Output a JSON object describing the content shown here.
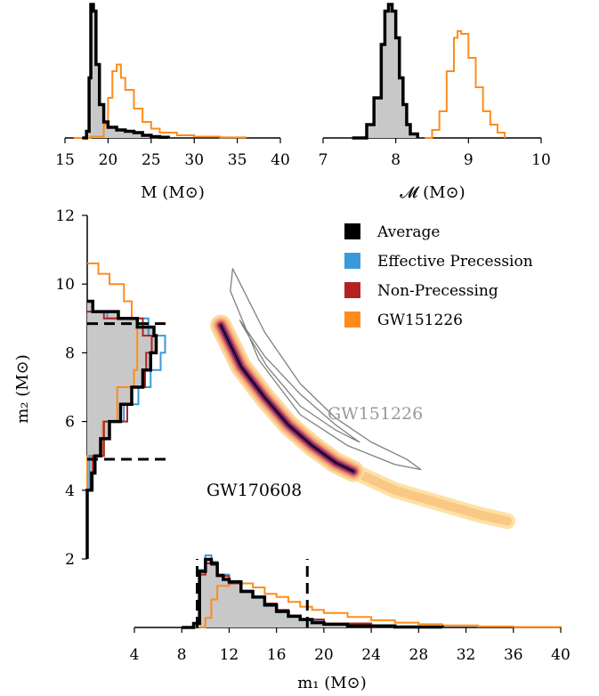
{
  "colors": {
    "average": "#000000",
    "effective_precession": "#3a9ad9",
    "non_precessing": "#b22222",
    "gw151226": "#ff8c1a",
    "fill_grey": "#c8c8c8",
    "contour_grey": "#808080"
  },
  "chart_data": [
    {
      "id": "total-mass",
      "type": "histogram",
      "xlabel": "M (M⊙)",
      "xlim": [
        15,
        40
      ],
      "xticks": [
        "15",
        "20",
        "25",
        "30",
        "35",
        "40"
      ],
      "series": [
        {
          "name": "Average",
          "bins": [
            [
              17.0,
              0
            ],
            [
              17.5,
              0.05
            ],
            [
              17.8,
              0.45
            ],
            [
              18.0,
              1.0
            ],
            [
              18.3,
              0.95
            ],
            [
              18.6,
              0.55
            ],
            [
              19.0,
              0.25
            ],
            [
              19.5,
              0.12
            ],
            [
              20.0,
              0.08
            ],
            [
              21,
              0.06
            ],
            [
              22,
              0.05
            ],
            [
              23,
              0.04
            ],
            [
              24,
              0.02
            ],
            [
              25,
              0.01
            ],
            [
              26,
              0.005
            ],
            [
              27,
              0
            ]
          ]
        },
        {
          "name": "GW151226",
          "bins": [
            [
              16,
              0
            ],
            [
              18,
              0.01
            ],
            [
              19.5,
              0.1
            ],
            [
              20.0,
              0.3
            ],
            [
              20.5,
              0.5
            ],
            [
              21.0,
              0.55
            ],
            [
              21.5,
              0.45
            ],
            [
              22,
              0.36
            ],
            [
              23,
              0.22
            ],
            [
              24,
              0.12
            ],
            [
              25,
              0.07
            ],
            [
              26,
              0.04
            ],
            [
              28,
              0.02
            ],
            [
              30,
              0.01
            ],
            [
              33,
              0.004
            ],
            [
              36,
              0
            ]
          ]
        }
      ]
    },
    {
      "id": "chirp-mass",
      "type": "histogram",
      "xlabel": "𝓜 (M⊙)",
      "xlim": [
        7,
        10
      ],
      "xticks": [
        "7",
        "8",
        "9",
        "10"
      ],
      "series": [
        {
          "name": "Average",
          "bins": [
            [
              7.4,
              0
            ],
            [
              7.6,
              0.1
            ],
            [
              7.7,
              0.3
            ],
            [
              7.8,
              0.7
            ],
            [
              7.85,
              0.95
            ],
            [
              7.9,
              1.0
            ],
            [
              7.95,
              0.95
            ],
            [
              8.0,
              0.75
            ],
            [
              8.05,
              0.45
            ],
            [
              8.1,
              0.25
            ],
            [
              8.15,
              0.1
            ],
            [
              8.2,
              0.03
            ],
            [
              8.3,
              0
            ]
          ]
        },
        {
          "name": "GW151226",
          "bins": [
            [
              8.4,
              0
            ],
            [
              8.5,
              0.06
            ],
            [
              8.6,
              0.2
            ],
            [
              8.7,
              0.5
            ],
            [
              8.8,
              0.75
            ],
            [
              8.85,
              0.8
            ],
            [
              8.9,
              0.78
            ],
            [
              9.0,
              0.6
            ],
            [
              9.1,
              0.38
            ],
            [
              9.2,
              0.2
            ],
            [
              9.3,
              0.1
            ],
            [
              9.4,
              0.04
            ],
            [
              9.5,
              0
            ]
          ]
        }
      ]
    },
    {
      "id": "component-masses",
      "type": "scatter",
      "xlabel": "m₁ (M⊙)",
      "ylabel": "m₂ (M⊙)",
      "xlim": [
        4,
        40
      ],
      "ylim": [
        2,
        12
      ],
      "xticks": [
        "4",
        "8",
        "12",
        "16",
        "20",
        "24",
        "28",
        "32",
        "36",
        "40"
      ],
      "yticks": [
        "2",
        "4",
        "6",
        "8",
        "10",
        "12"
      ],
      "legend": {
        "position": "top-right",
        "entries": [
          "Average",
          "Effective Precession",
          "Non-Precessing",
          "GW151226"
        ]
      },
      "annotations": [
        "GW151226",
        "GW170608"
      ],
      "m2_marginal": {
        "credible_bounds": [
          4.9,
          8.85
        ],
        "series": [
          {
            "name": "Average",
            "bins": [
              [
                2.0,
                0.0
              ],
              [
                3.5,
                0.0
              ],
              [
                4.0,
                0.04
              ],
              [
                4.5,
                0.07
              ],
              [
                5.0,
                0.12
              ],
              [
                5.5,
                0.2
              ],
              [
                6.0,
                0.3
              ],
              [
                6.5,
                0.4
              ],
              [
                7.0,
                0.5
              ],
              [
                7.5,
                0.57
              ],
              [
                8.0,
                0.62
              ],
              [
                8.5,
                0.6
              ],
              [
                8.75,
                0.45
              ],
              [
                9.0,
                0.28
              ],
              [
                9.2,
                0.05
              ],
              [
                9.5,
                0.0
              ]
            ]
          },
          {
            "name": "Effective Precession",
            "bins": [
              [
                4.0,
                0.02
              ],
              [
                5.0,
                0.15
              ],
              [
                6.0,
                0.33
              ],
              [
                6.5,
                0.46
              ],
              [
                7.0,
                0.57
              ],
              [
                7.5,
                0.66
              ],
              [
                8.0,
                0.7
              ],
              [
                8.5,
                0.55
              ],
              [
                9.0,
                0.18
              ],
              [
                9.2,
                0.02
              ]
            ]
          },
          {
            "name": "Non-Precessing",
            "bins": [
              [
                4.0,
                0.05
              ],
              [
                5.0,
                0.15
              ],
              [
                6.0,
                0.36
              ],
              [
                6.5,
                0.4
              ],
              [
                7.0,
                0.52
              ],
              [
                7.5,
                0.53
              ],
              [
                8.0,
                0.58
              ],
              [
                8.5,
                0.5
              ],
              [
                9.0,
                0.15
              ],
              [
                9.2,
                0.02
              ]
            ]
          },
          {
            "name": "GW151226",
            "bins": [
              [
                4.0,
                0.0
              ],
              [
                5.0,
                0.14
              ],
              [
                6.0,
                0.27
              ],
              [
                7.0,
                0.42
              ],
              [
                7.5,
                0.45
              ],
              [
                8.0,
                0.45
              ],
              [
                8.5,
                0.45
              ],
              [
                9.0,
                0.4
              ],
              [
                9.5,
                0.33
              ],
              [
                10.0,
                0.2
              ],
              [
                10.3,
                0.1
              ],
              [
                10.6,
                0.0
              ]
            ]
          }
        ]
      },
      "m1_marginal": {
        "credible_bounds": [
          9.3,
          18.6
        ],
        "series": [
          {
            "name": "Average",
            "bins": [
              [
                8.0,
                0.0
              ],
              [
                9.0,
                0.05
              ],
              [
                9.5,
                0.7
              ],
              [
                10.0,
                0.85
              ],
              [
                10.5,
                0.8
              ],
              [
                11.0,
                0.65
              ],
              [
                11.5,
                0.6
              ],
              [
                12.0,
                0.57
              ],
              [
                13,
                0.45
              ],
              [
                14,
                0.38
              ],
              [
                15,
                0.28
              ],
              [
                16,
                0.2
              ],
              [
                17,
                0.14
              ],
              [
                18,
                0.1
              ],
              [
                19,
                0.06
              ],
              [
                20,
                0.04
              ],
              [
                22,
                0.02
              ],
              [
                26,
                0.006
              ],
              [
                30,
                0.0
              ]
            ]
          },
          {
            "name": "Effective Precession",
            "bins": [
              [
                9.0,
                0.05
              ],
              [
                9.5,
                0.72
              ],
              [
                10.0,
                0.9
              ],
              [
                10.5,
                0.82
              ],
              [
                11.0,
                0.66
              ],
              [
                12.0,
                0.58
              ],
              [
                13,
                0.44
              ],
              [
                14,
                0.37
              ],
              [
                15,
                0.27
              ],
              [
                16,
                0.19
              ],
              [
                17,
                0.13
              ],
              [
                18,
                0.09
              ],
              [
                20,
                0.04
              ],
              [
                24,
                0.01
              ],
              [
                28,
                0.0
              ]
            ]
          },
          {
            "name": "Non-Precessing",
            "bins": [
              [
                9.0,
                0.05
              ],
              [
                9.5,
                0.66
              ],
              [
                10.0,
                0.8
              ],
              [
                10.5,
                0.78
              ],
              [
                11.0,
                0.64
              ],
              [
                12.0,
                0.55
              ],
              [
                13,
                0.46
              ],
              [
                14,
                0.38
              ],
              [
                15,
                0.3
              ],
              [
                16,
                0.22
              ],
              [
                17,
                0.15
              ],
              [
                18,
                0.1
              ],
              [
                20,
                0.05
              ],
              [
                24,
                0.01
              ],
              [
                28,
                0.0
              ]
            ]
          },
          {
            "name": "GW151226",
            "bins": [
              [
                9.5,
                0.0
              ],
              [
                10.0,
                0.12
              ],
              [
                10.5,
                0.35
              ],
              [
                11.0,
                0.52
              ],
              [
                12,
                0.55
              ],
              [
                13,
                0.55
              ],
              [
                14,
                0.5
              ],
              [
                15,
                0.42
              ],
              [
                16,
                0.38
              ],
              [
                17,
                0.32
              ],
              [
                18,
                0.26
              ],
              [
                19,
                0.22
              ],
              [
                20,
                0.18
              ],
              [
                22,
                0.13
              ],
              [
                24,
                0.09
              ],
              [
                26,
                0.06
              ],
              [
                28,
                0.04
              ],
              [
                30,
                0.025
              ],
              [
                33,
                0.012
              ],
              [
                36,
                0.005
              ],
              [
                40,
                0.0
              ]
            ]
          }
        ]
      },
      "gw170608_credible_region": {
        "ridge": [
          [
            11.3,
            8.8
          ],
          [
            13,
            7.6
          ],
          [
            15,
            6.7
          ],
          [
            17,
            5.9
          ],
          [
            19,
            5.3
          ],
          [
            21,
            4.8
          ],
          [
            22.5,
            4.55
          ]
        ],
        "tail": [
          [
            22.5,
            4.55
          ],
          [
            26,
            4.0
          ],
          [
            30,
            3.6
          ],
          [
            33,
            3.3
          ],
          [
            35.5,
            3.1
          ]
        ]
      },
      "gw151226_contours": {
        "outer": [
          [
            12.3,
            10.45
          ],
          [
            15,
            8.6
          ],
          [
            18,
            7.1
          ],
          [
            21,
            6.1
          ],
          [
            24,
            5.4
          ],
          [
            27,
            4.9
          ],
          [
            28.2,
            4.6
          ],
          [
            26,
            4.75
          ],
          [
            22,
            5.3
          ],
          [
            18,
            6.2
          ],
          [
            14.5,
            7.8
          ],
          [
            12.1,
            9.8
          ]
        ],
        "inner": [
          [
            12.9,
            8.95
          ],
          [
            15,
            7.9
          ],
          [
            18,
            6.8
          ],
          [
            21,
            5.9
          ],
          [
            23,
            5.4
          ],
          [
            21,
            5.75
          ],
          [
            18,
            6.45
          ],
          [
            15.2,
            7.6
          ],
          [
            13.2,
            8.75
          ]
        ]
      }
    }
  ]
}
